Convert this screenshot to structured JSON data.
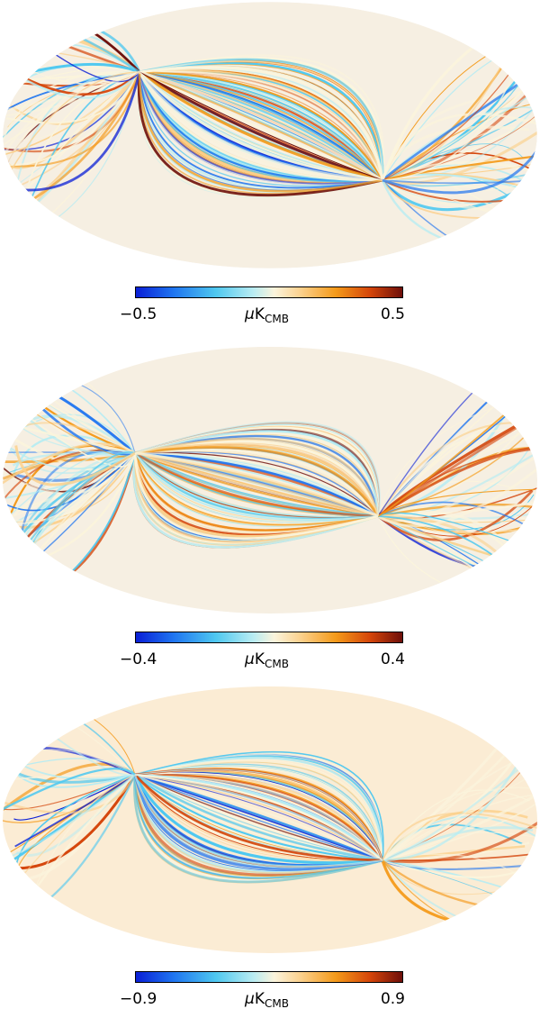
{
  "panels": [
    {
      "colorbar": {
        "min_label": "−0.5",
        "max_label": "0.5",
        "unit_prefix": "μ",
        "unit_main": "K",
        "unit_sub": "CMB"
      },
      "map_style": "streaked"
    },
    {
      "colorbar": {
        "min_label": "−0.4",
        "max_label": "0.4",
        "unit_prefix": "μ",
        "unit_main": "K",
        "unit_sub": "CMB"
      },
      "map_style": "streaked"
    },
    {
      "colorbar": {
        "min_label": "−0.9",
        "max_label": "0.9",
        "unit_prefix": "μ",
        "unit_main": "K",
        "unit_sub": "CMB"
      },
      "map_style": "masked-center"
    }
  ],
  "colormap": {
    "name": "planck-diverging",
    "stops": [
      "#0a1fd6",
      "#1f74f0",
      "#4fc8f0",
      "#b8ecf2",
      "#fbf4dc",
      "#fbd08c",
      "#f49a1a",
      "#d4450a",
      "#6e0f0a"
    ]
  }
}
